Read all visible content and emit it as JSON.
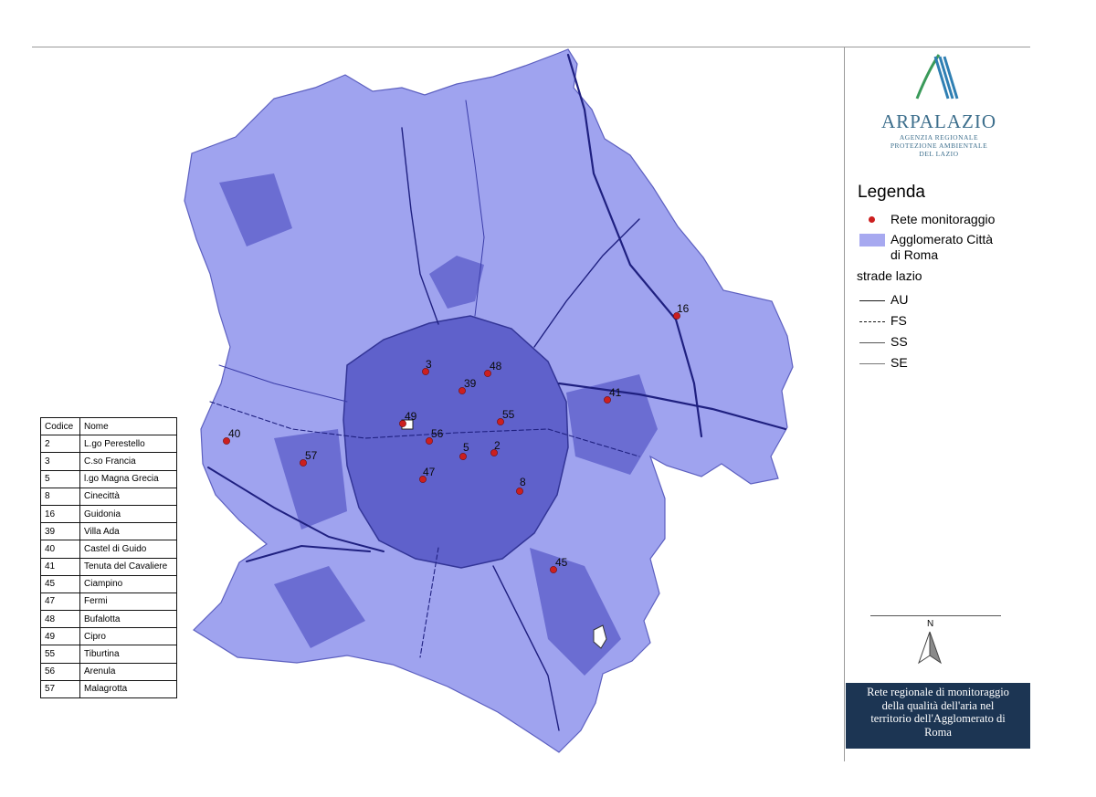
{
  "colors": {
    "map_fill": "#9fa3ef",
    "urban_fill": "#5a5cc8",
    "station_dot": "#cc1f1f",
    "caption_bg": "#1c3553",
    "logo": "#3c6e8c"
  },
  "logo": {
    "name": "ARPALAZIO",
    "subtitle_lines": [
      "AGENZIA REGIONALE",
      "PROTEZIONE AMBIENTALE",
      "DEL LAZIO"
    ]
  },
  "legend": {
    "title": "Legenda",
    "items": [
      {
        "symbol": "red-dot",
        "label_lines": [
          "Rete monitoraggio"
        ]
      },
      {
        "symbol": "area",
        "label_lines": [
          "Agglomerato Città",
          "di Roma"
        ]
      }
    ],
    "roads_title": "strade lazio",
    "roads": [
      {
        "symbol": "solid-thick",
        "label": "AU"
      },
      {
        "symbol": "dashed",
        "label": "FS"
      },
      {
        "symbol": "solid-thin",
        "label": "SS"
      },
      {
        "symbol": "solid-thin-grey",
        "label": "SE"
      }
    ]
  },
  "table": {
    "headers": [
      "Codice",
      "Nome"
    ],
    "rows": [
      [
        "2",
        "L.go Perestello"
      ],
      [
        "3",
        "C.so Francia"
      ],
      [
        "5",
        "l.go Magna Grecia"
      ],
      [
        "8",
        "Cinecittà"
      ],
      [
        "16",
        "Guidonia"
      ],
      [
        "39",
        "Villa Ada"
      ],
      [
        "40",
        "Castel di Guido"
      ],
      [
        "41",
        "Tenuta del Cavaliere"
      ],
      [
        "45",
        "Ciampino"
      ],
      [
        "47",
        "Fermi"
      ],
      [
        "48",
        "Bufalotta"
      ],
      [
        "49",
        "Cipro"
      ],
      [
        "55",
        "Tiburtina"
      ],
      [
        "56",
        "Arenula"
      ],
      [
        "57",
        "Malagrotta"
      ]
    ]
  },
  "stations": [
    "2",
    "3",
    "5",
    "8",
    "16",
    "39",
    "40",
    "41",
    "45",
    "47",
    "48",
    "49",
    "55",
    "56",
    "57"
  ],
  "north_label": "N",
  "caption_lines": [
    "Rete regionale di monitoraggio",
    "della qualità dell'aria nel",
    "territorio dell'Agglomerato di",
    "Roma"
  ]
}
